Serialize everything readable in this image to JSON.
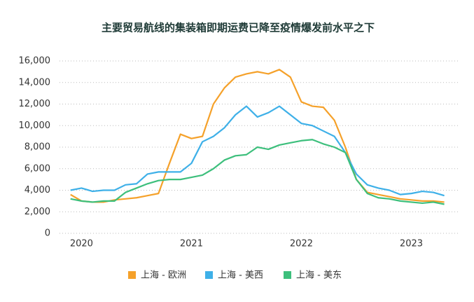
{
  "chart_data": {
    "type": "line",
    "title": "主要贸易航线的集装箱即期运费已降至疫情爆发前水平之下",
    "x": [
      2019.9,
      2020.0,
      2020.1,
      2020.2,
      2020.3,
      2020.4,
      2020.5,
      2020.6,
      2020.7,
      2020.8,
      2020.9,
      2021.0,
      2021.1,
      2021.2,
      2021.3,
      2021.4,
      2021.5,
      2021.6,
      2021.7,
      2021.8,
      2021.9,
      2022.0,
      2022.1,
      2022.2,
      2022.3,
      2022.4,
      2022.5,
      2022.6,
      2022.7,
      2022.8,
      2022.9,
      2023.0,
      2023.1,
      2023.2,
      2023.3
    ],
    "series": [
      {
        "name": "上海 - 欧洲",
        "color": "#f5a12a",
        "values": [
          3600,
          3000,
          2900,
          2900,
          3100,
          3200,
          3300,
          3500,
          3700,
          6500,
          9200,
          8800,
          9000,
          12000,
          13500,
          14500,
          14800,
          15000,
          14800,
          15200,
          14500,
          12200,
          11800,
          11700,
          10500,
          8000,
          5000,
          3800,
          3600,
          3400,
          3200,
          3100,
          3000,
          3000,
          2900
        ]
      },
      {
        "name": "上海 - 美西",
        "color": "#3eb0e8",
        "values": [
          4000,
          4200,
          3900,
          4000,
          4000,
          4500,
          4600,
          5500,
          5700,
          5700,
          5700,
          6500,
          8500,
          9000,
          9800,
          11000,
          11800,
          10800,
          11200,
          11800,
          11000,
          10200,
          10000,
          9500,
          9000,
          7500,
          5500,
          4500,
          4200,
          4000,
          3600,
          3700,
          3900,
          3800,
          3500
        ]
      },
      {
        "name": "上海 - 美东",
        "color": "#3dbf7c",
        "values": [
          3200,
          3000,
          2900,
          3000,
          3000,
          3800,
          4200,
          4600,
          4900,
          5000,
          5000,
          5200,
          5400,
          6000,
          6800,
          7200,
          7300,
          8000,
          7800,
          8200,
          8400,
          8600,
          8700,
          8300,
          8000,
          7500,
          5000,
          3700,
          3300,
          3200,
          3000,
          2900,
          2800,
          2900,
          2700
        ]
      }
    ],
    "xlim": [
      2019.8,
      2023.43
    ],
    "xticks": [
      2020,
      2021,
      2022,
      2023
    ],
    "ylim": [
      0,
      16000
    ],
    "yticks": [
      0,
      {
        "value": 2000,
        "label": "2,000"
      },
      {
        "value": 4000,
        "label": "4,000"
      },
      {
        "value": 6000,
        "label": "6,000"
      },
      {
        "value": 8000,
        "label": "8,000"
      },
      {
        "value": 10000,
        "label": "10,000"
      },
      {
        "value": 12000,
        "label": "12,000"
      },
      {
        "value": 14000,
        "label": "14,000"
      },
      {
        "value": 16000,
        "label": "16,000"
      }
    ],
    "grid": true,
    "legend": "bottom"
  }
}
